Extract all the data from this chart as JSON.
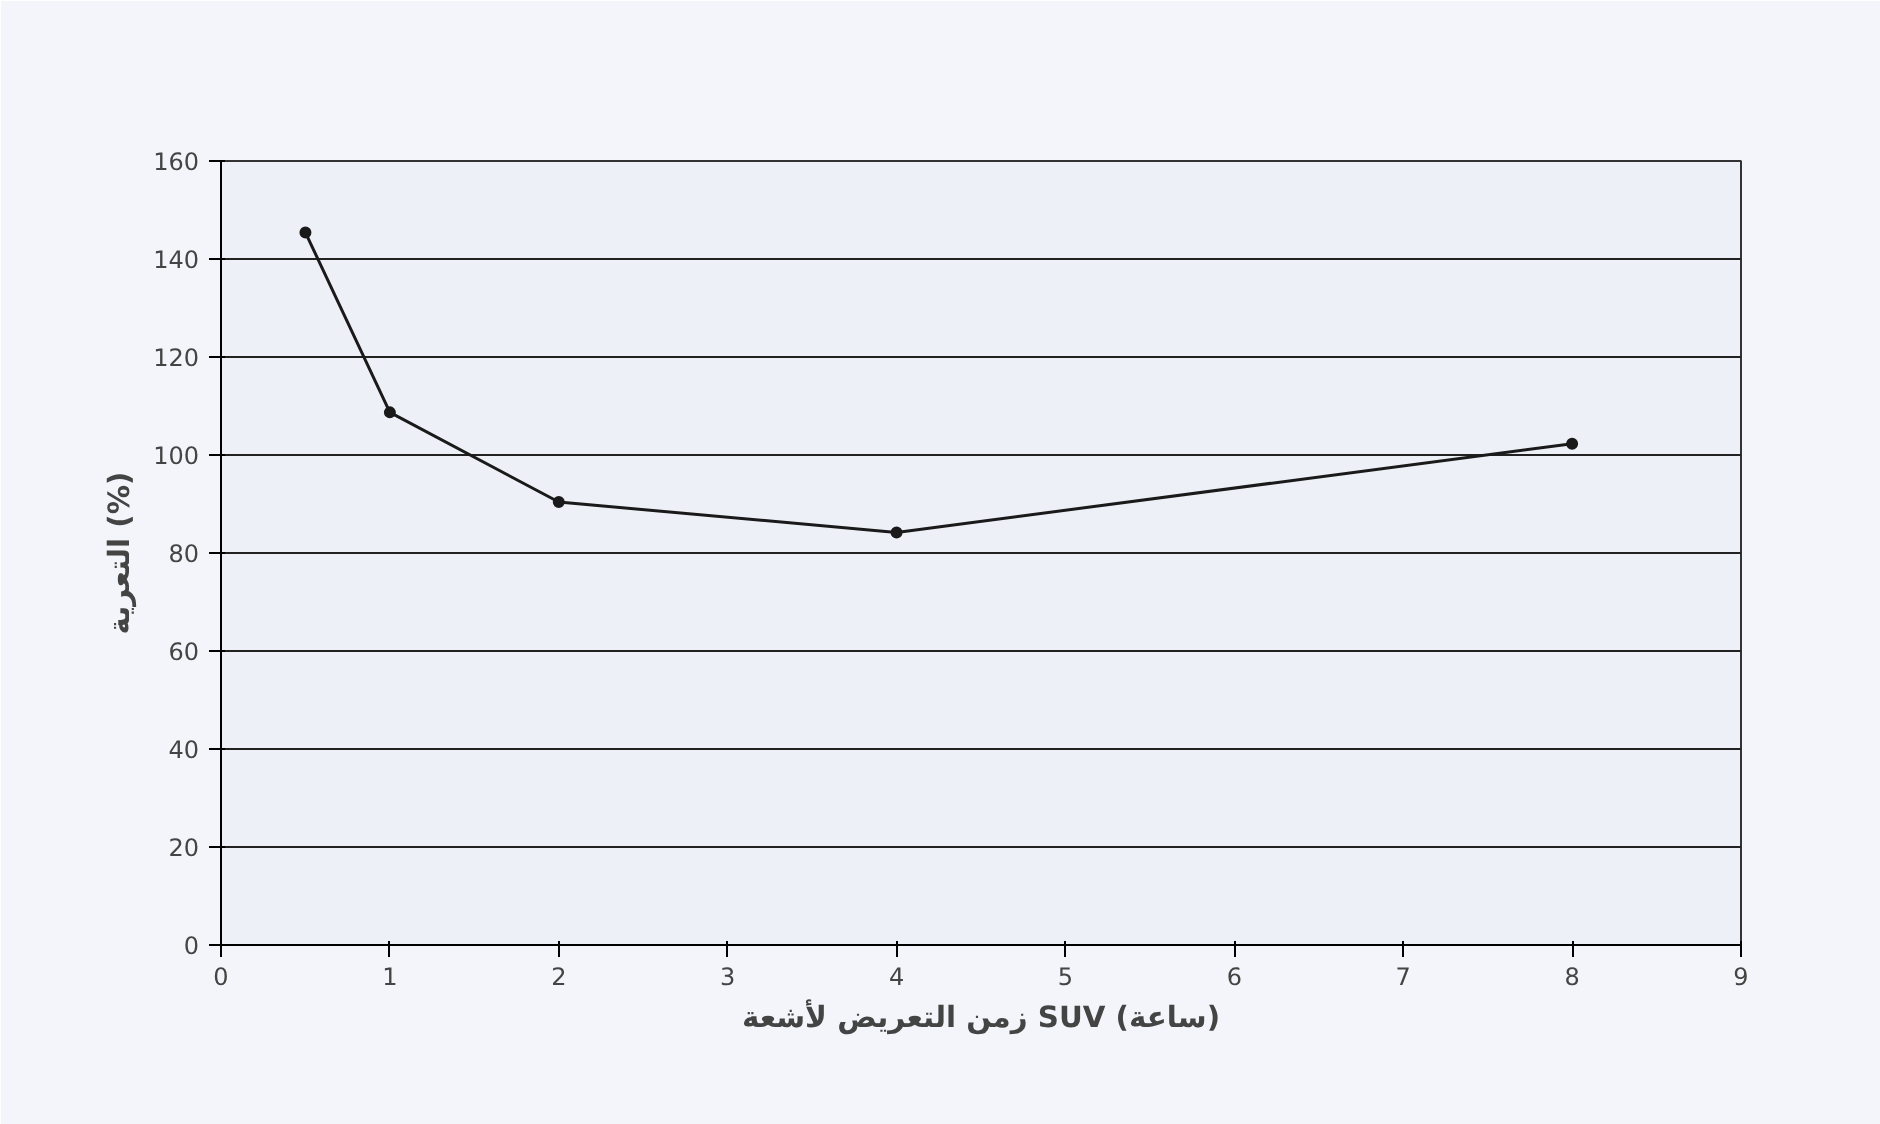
{
  "chart_data": {
    "type": "line",
    "xlabel": "زمن التعريض لأشعة SUV (ساعة)",
    "ylabel": "التعرية (%)",
    "x": [
      0.5,
      1,
      2,
      4,
      8
    ],
    "series": [
      {
        "color": "#1a1a1a",
        "values": [
          145.4,
          108.7,
          90.4,
          84.2,
          102.3
        ]
      }
    ],
    "xlim": [
      0,
      9
    ],
    "xticks": [
      0,
      1,
      2,
      3,
      4,
      5,
      6,
      7,
      8,
      9
    ],
    "ylim": [
      0,
      160
    ],
    "yticks": [
      0,
      20,
      40,
      60,
      80,
      100,
      120,
      140,
      160
    ],
    "grid": "y",
    "marker": "circle",
    "line_style": "solid"
  }
}
